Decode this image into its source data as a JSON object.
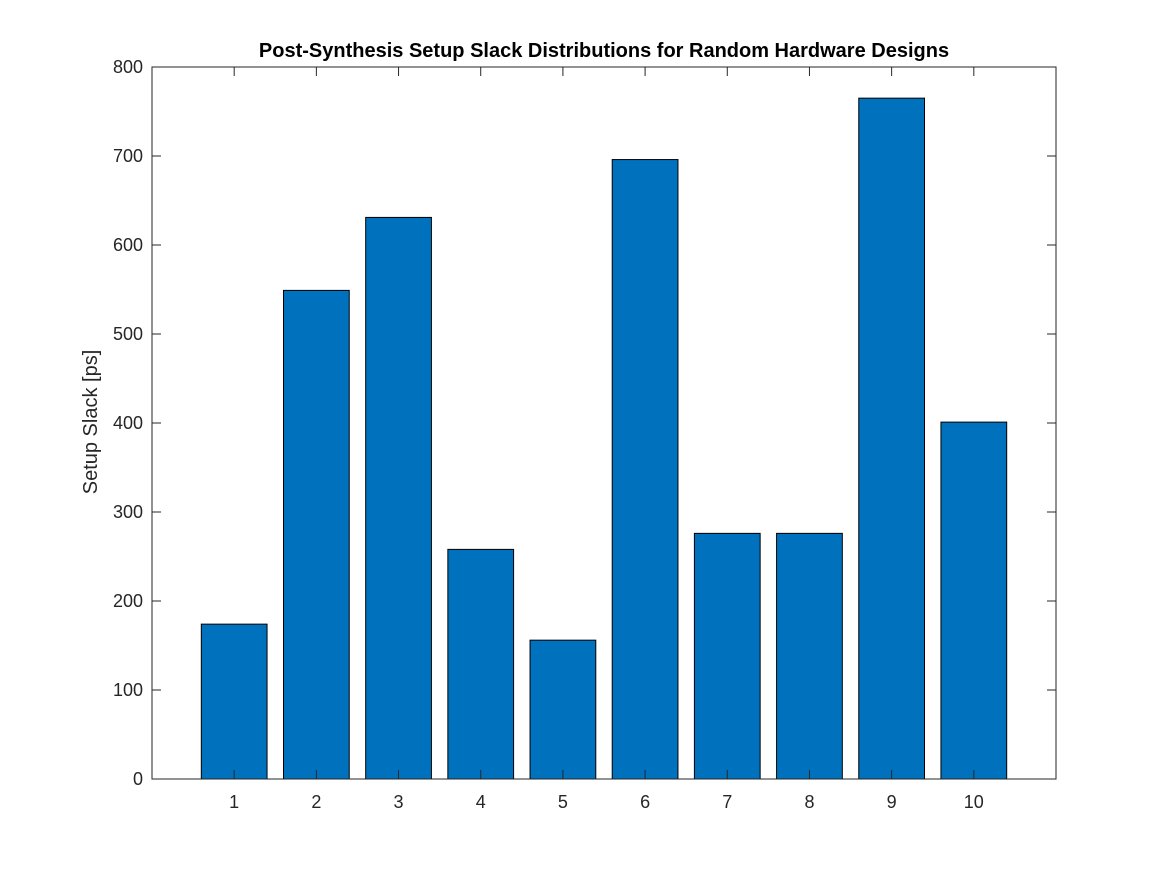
{
  "chart_data": {
    "type": "bar",
    "title": "Post-Synthesis Setup Slack Distributions for Random Hardware Designs",
    "xlabel": "",
    "ylabel": "Setup Slack [ps]",
    "categories": [
      "1",
      "2",
      "3",
      "4",
      "5",
      "6",
      "7",
      "8",
      "9",
      "10"
    ],
    "values": [
      174,
      549,
      631,
      258,
      156,
      696,
      276,
      276,
      765,
      401
    ],
    "xlim": [
      0,
      11
    ],
    "ylim": [
      0,
      800
    ],
    "yticks": [
      0,
      100,
      200,
      300,
      400,
      500,
      600,
      700,
      800
    ],
    "grid": false,
    "legend": "none",
    "bar_color": "#0072BD",
    "bar_edge_color": "#000000",
    "axis_color": "#262626"
  }
}
